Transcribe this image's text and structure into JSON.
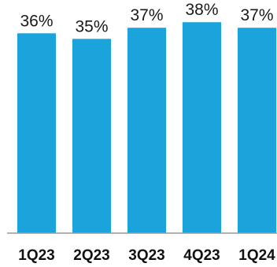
{
  "chart_data": {
    "type": "bar",
    "title": "",
    "xlabel": "",
    "ylabel": "",
    "categories": [
      "1Q23",
      "2Q23",
      "3Q23",
      "4Q23",
      "1Q24"
    ],
    "values": [
      36,
      35,
      37,
      38,
      37
    ],
    "value_labels": [
      "36%",
      "35%",
      "37%",
      "38%",
      "37%"
    ],
    "unit": "%",
    "ylim": [
      0,
      42
    ],
    "grid": false,
    "legend": "none",
    "colors": {
      "bar": "#1ba3dc",
      "axis": "#9a9a9a"
    }
  }
}
